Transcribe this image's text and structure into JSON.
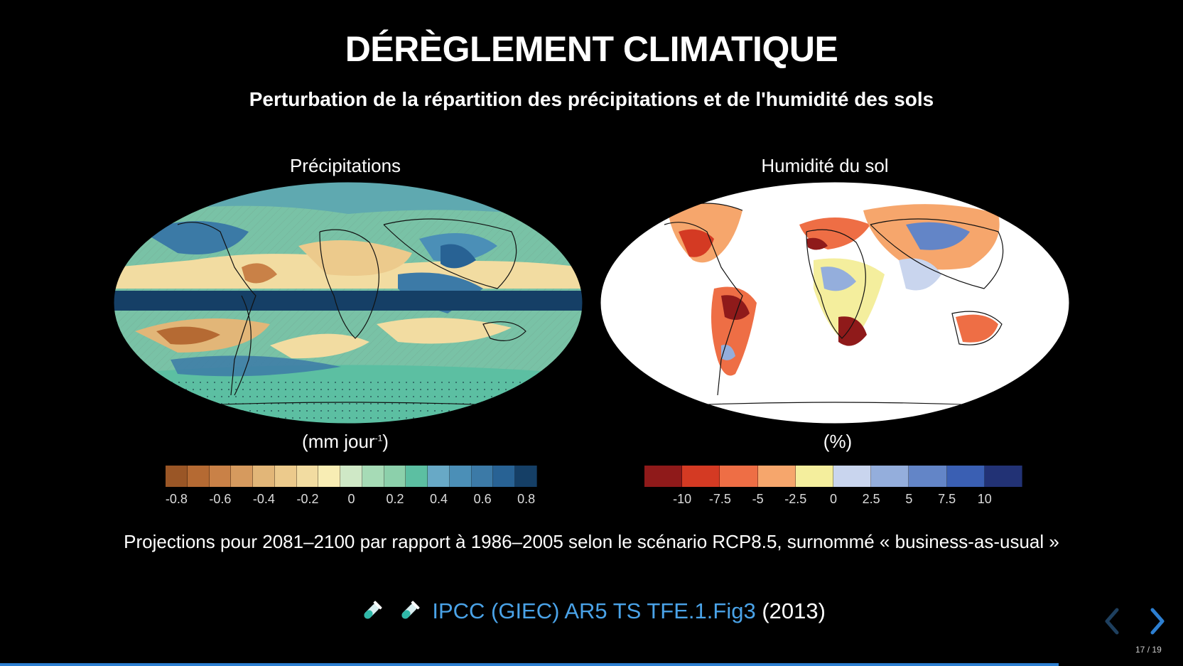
{
  "slide": {
    "title": "DÉRÈGLEMENT CLIMATIQUE",
    "subtitle": "Perturbation de la répartition des précipitations et de l'humidité des sols",
    "projection_note": "Projections pour 2081–2100 par rapport à 1986–2005 selon le scénario RCP8.5, surnommé « business-as-usual »"
  },
  "left_panel": {
    "title": "Précipitations",
    "unit_text": "(mm jour",
    "unit_sup": "-1",
    "unit_close": ")",
    "colorbar_colors": [
      "#9a5626",
      "#b56a33",
      "#c98147",
      "#d69a5e",
      "#e2b678",
      "#ecca8c",
      "#f2dca1",
      "#f8edb4",
      "#cfe8c6",
      "#a6dbb6",
      "#8cd0ab",
      "#5cbfa2",
      "#68a9c6",
      "#4b8fb7",
      "#3c7aa7",
      "#286294",
      "#153f66"
    ],
    "ticks": [
      "-0.8",
      "-0.6",
      "-0.4",
      "-0.2",
      "0",
      "0.2",
      "0.4",
      "0.6",
      "0.8"
    ]
  },
  "right_panel": {
    "title": "Humidité du sol",
    "unit_text": "(%)",
    "colorbar_colors": [
      "#8f1a1a",
      "#d43a23",
      "#ee6e45",
      "#f6a66c",
      "#f4ee9d",
      "#c9d5ee",
      "#94aedc",
      "#6385c7",
      "#3a5fb3",
      "#223275"
    ],
    "ticks": [
      "-10",
      "-7.5",
      "-5",
      "-2.5",
      "0",
      "2.5",
      "5",
      "7.5",
      "10"
    ]
  },
  "citation": {
    "link_text": "IPCC (GIEC) AR5 TS TFE.1.Fig3",
    "year": "(2013)",
    "icons": [
      "test-tube-icon",
      "test-tube-icon"
    ]
  },
  "navigation": {
    "current": "17",
    "separator": "/",
    "total": "19",
    "progress_fraction": 0.895,
    "accent_color": "#2d7fd1"
  }
}
